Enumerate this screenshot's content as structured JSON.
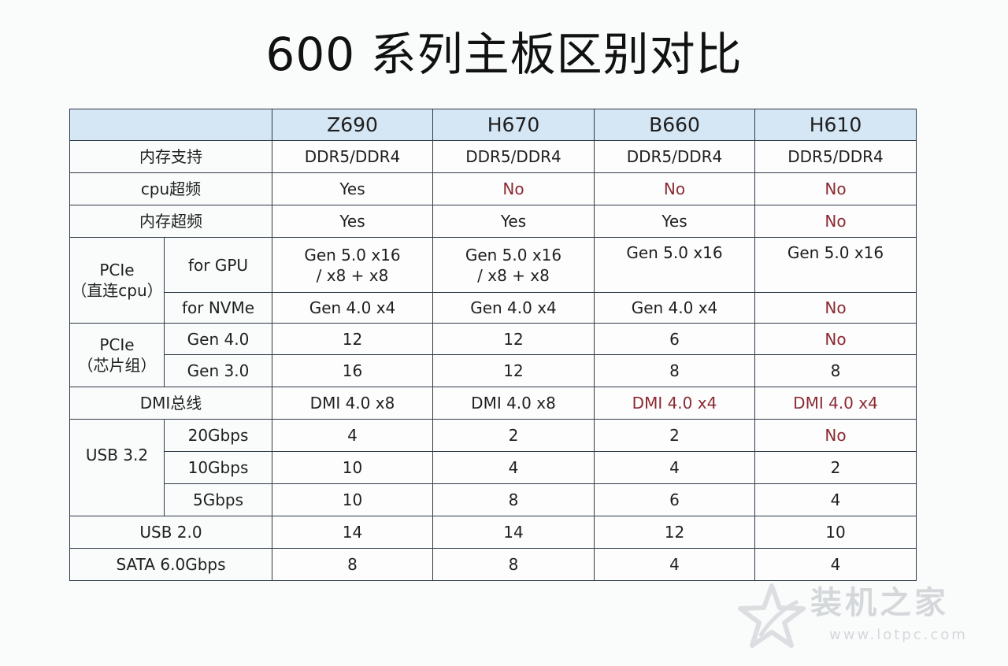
{
  "title": "600 系列主板区别对比",
  "columns": [
    "Z690",
    "H670",
    "B660",
    "H610"
  ],
  "rows": {
    "memory_support": {
      "label": "内存支持",
      "values": [
        "DDR5/DDR4",
        "DDR5/DDR4",
        "DDR5/DDR4",
        "DDR5/DDR4"
      ]
    },
    "cpu_oc": {
      "label": "cpu超频",
      "values": [
        "Yes",
        "No",
        "No",
        "No"
      ]
    },
    "mem_oc": {
      "label": "内存超频",
      "values": [
        "Yes",
        "Yes",
        "Yes",
        "No"
      ]
    },
    "pcie_cpu": {
      "label": "PCIe",
      "sublabel": "（直连cpu）",
      "gpu": {
        "label": "for GPU",
        "line1": [
          "Gen 5.0 x16",
          "Gen 5.0 x16",
          "Gen 5.0 x16",
          "Gen 5.0 x16"
        ],
        "line2": [
          "/ x8 + x8",
          "/ x8 + x8",
          "",
          ""
        ]
      },
      "nvme": {
        "label": "for NVMe",
        "values": [
          "Gen 4.0 x4",
          "Gen 4.0 x4",
          "Gen 4.0 x4",
          "No"
        ]
      }
    },
    "pcie_chipset": {
      "label": "PCIe",
      "sublabel": "（芯片组）",
      "gen4": {
        "label": "Gen 4.0",
        "values": [
          "12",
          "12",
          "6",
          "No"
        ]
      },
      "gen3": {
        "label": "Gen 3.0",
        "values": [
          "16",
          "12",
          "8",
          "8"
        ]
      }
    },
    "dmi": {
      "label": "DMI总线",
      "values": [
        "DMI 4.0 x8",
        "DMI 4.0 x8",
        "DMI 4.0 x4",
        "DMI 4.0 x4"
      ]
    },
    "usb32": {
      "label": "USB 3.2",
      "g20": {
        "label": "20Gbps",
        "values": [
          "4",
          "2",
          "2",
          "No"
        ]
      },
      "g10": {
        "label": "10Gbps",
        "values": [
          "10",
          "4",
          "4",
          "2"
        ]
      },
      "g5": {
        "label": "5Gbps",
        "values": [
          "10",
          "8",
          "6",
          "4"
        ]
      }
    },
    "usb20": {
      "label": "USB 2.0",
      "values": [
        "14",
        "14",
        "12",
        "10"
      ]
    },
    "sata": {
      "label": "SATA 6.0Gbps",
      "values": [
        "8",
        "8",
        "4",
        "4"
      ]
    }
  },
  "watermark": {
    "name": "装机之家",
    "url": "www.lotpc.com"
  },
  "colors": {
    "header_bg": "#d5e6f5",
    "negative_text": "#8a2a32",
    "border": "#2f3a4a"
  }
}
